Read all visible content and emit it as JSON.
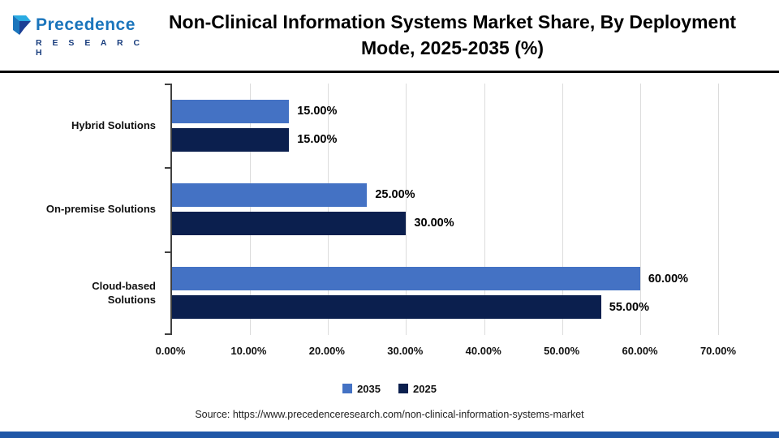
{
  "header": {
    "logo_text": "Precedence",
    "logo_subtext": "R E S E A R C H",
    "title": "Non-Clinical Information Systems Market Share, By Deployment Mode, 2025-2035 (%)"
  },
  "chart_data": {
    "type": "bar",
    "orientation": "horizontal",
    "categories": [
      "Hybrid Solutions",
      "On-premise Solutions",
      "Cloud-based Solutions"
    ],
    "category_lines": [
      [
        "Hybrid Solutions"
      ],
      [
        "On-premise Solutions"
      ],
      [
        "Cloud-based",
        "Solutions"
      ]
    ],
    "series": [
      {
        "name": "2035",
        "color": "#4472C4",
        "values": [
          15.0,
          25.0,
          60.0
        ]
      },
      {
        "name": "2025",
        "color": "#0B1F4E",
        "values": [
          15.0,
          30.0,
          55.0
        ]
      }
    ],
    "value_label_format": "2-decimal-percent",
    "xlim": [
      0,
      70
    ],
    "x_ticks": [
      "0.00%",
      "10.00%",
      "20.00%",
      "30.00%",
      "40.00%",
      "50.00%",
      "60.00%",
      "70.00%"
    ],
    "grid": "vertical",
    "legend_position": "bottom"
  },
  "footer": {
    "source": "Source: https://www.precedenceresearch.com/non-clinical-information-systems-market"
  },
  "colors": {
    "header_rule": "#000000",
    "bottom_bar": "#2057A7",
    "logo_word": "#1B75BC",
    "logo_sub": "#1A3E7E"
  }
}
